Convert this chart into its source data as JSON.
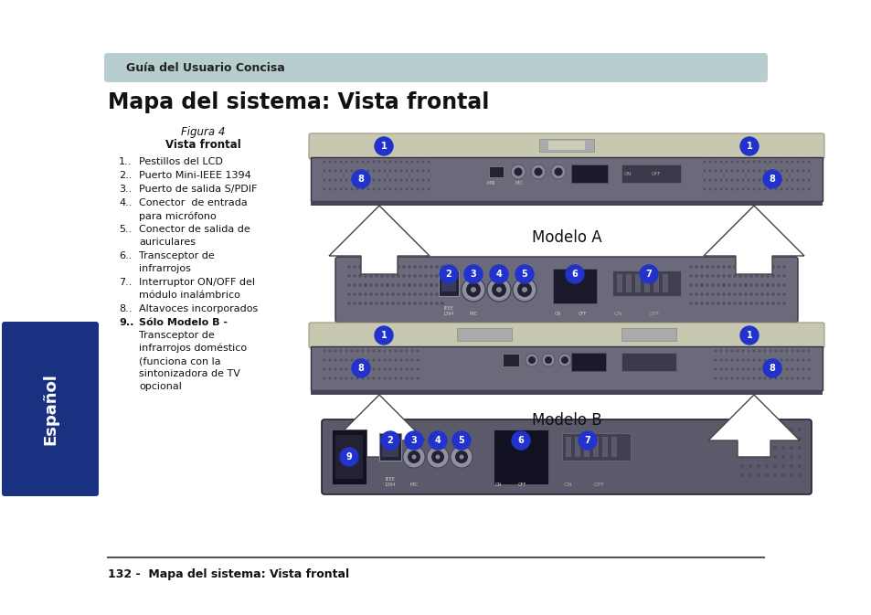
{
  "bg_color": "#ffffff",
  "header_bg": "#b8cece",
  "header_text": "Guía del Usuario Concisa",
  "title": "Mapa del sistema: Vista frontal",
  "figura_italic": "Figura 4",
  "figura_bold": "Vista frontal",
  "modelo_a_label": "Modelo A",
  "modelo_b_label": "Modelo B",
  "sidebar_bg": "#1a3080",
  "sidebar_text": "Español",
  "footer_line_color": "#555555",
  "footer_text": "132 -  Mapa del sistema: Vista frontal",
  "callout_color": "#2233cc",
  "callout_text_color": "#ffffff",
  "lid_color": "#c8c8b0",
  "lid_dark": "#a0a090",
  "body_color": "#6a6a7a",
  "body_dark": "#454555",
  "grille_color": "#505060",
  "port_dark": "#222233",
  "port_light": "#9090a0",
  "switch_color": "#505060"
}
